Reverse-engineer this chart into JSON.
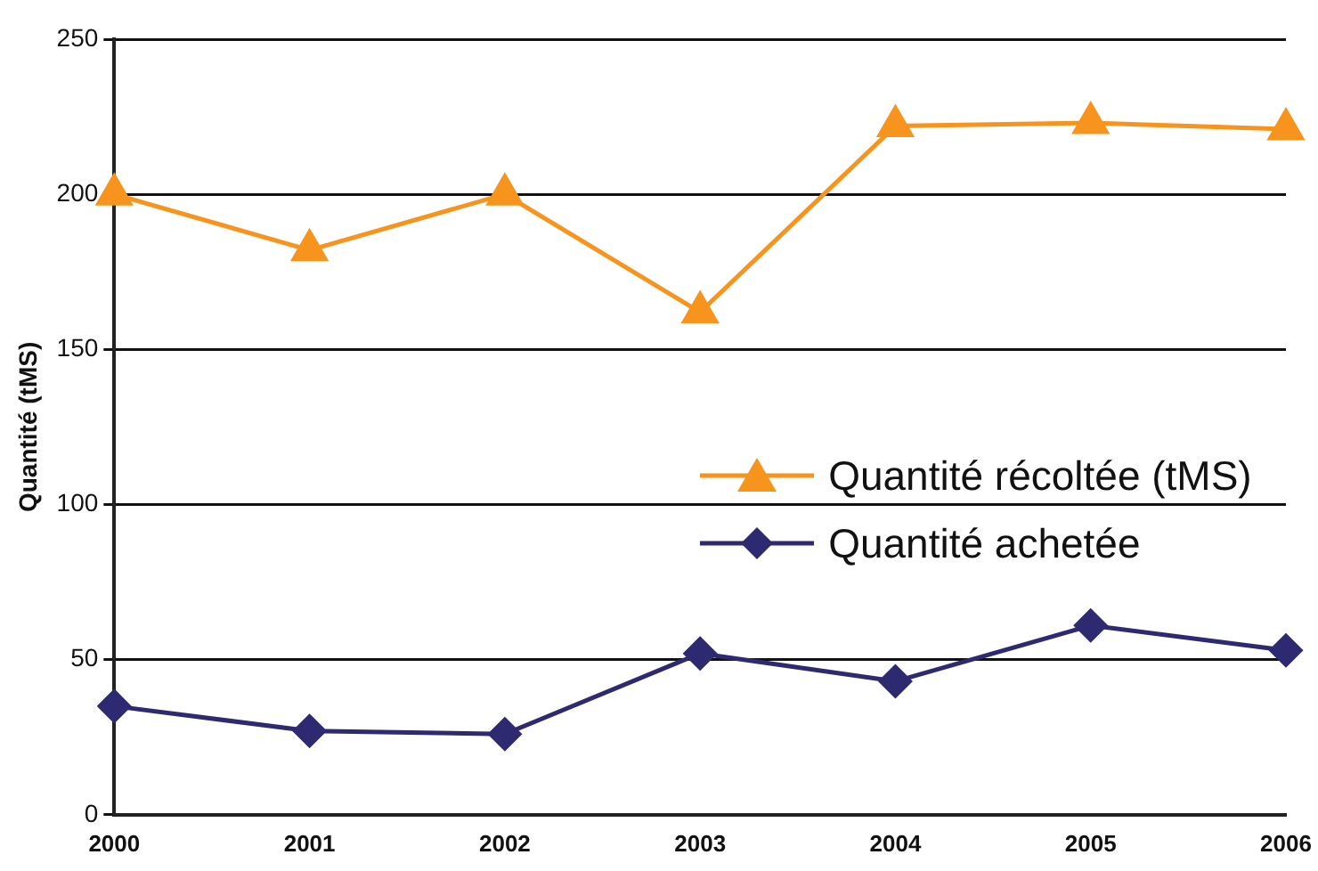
{
  "chart_data": {
    "type": "line",
    "ylabel": "Quantité (tMS)",
    "categories": [
      "2000",
      "2001",
      "2002",
      "2003",
      "2004",
      "2005",
      "2006"
    ],
    "series": [
      {
        "name": "Quantité récoltée (tMS)",
        "color": "#f7941d",
        "marker": "triangle",
        "values": [
          200,
          182,
          200,
          162,
          222,
          223,
          221
        ]
      },
      {
        "name": "Quantité achetée",
        "color": "#2e2a72",
        "marker": "diamond",
        "values": [
          35,
          27,
          26,
          52,
          43,
          61,
          53
        ]
      }
    ],
    "ylim": [
      0,
      250
    ],
    "yticks": [
      0,
      50,
      100,
      150,
      200,
      250
    ],
    "grid": "y",
    "legend": "right"
  }
}
